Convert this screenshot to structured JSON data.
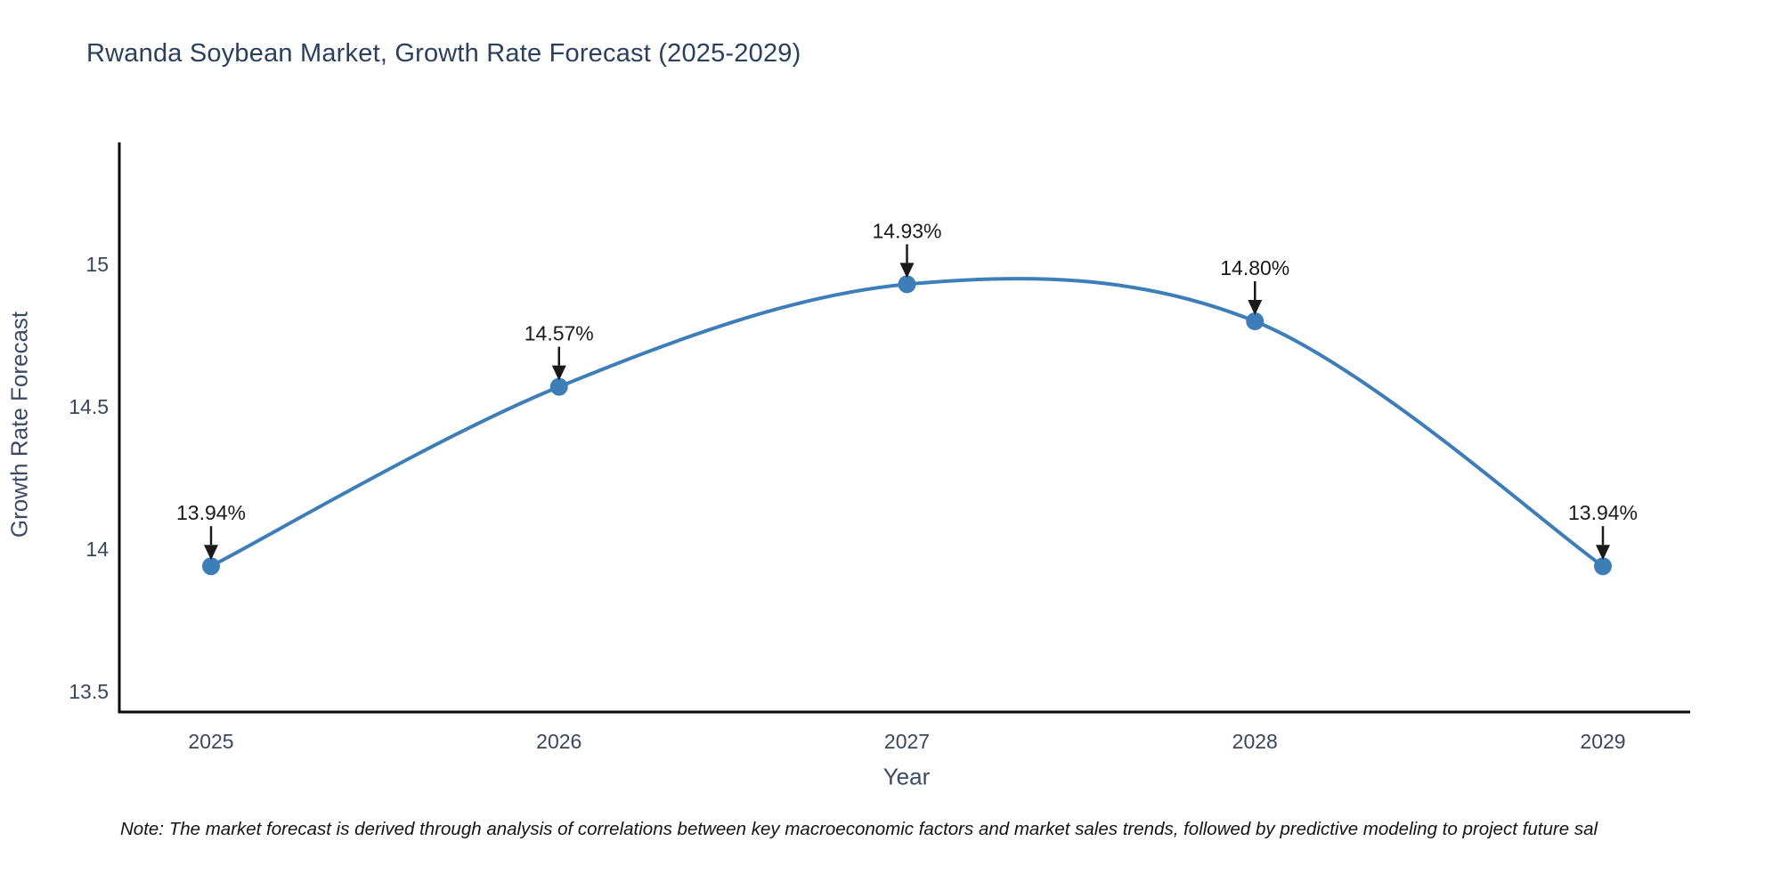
{
  "title": "Rwanda Soybean Market, Growth Rate Forecast (2025-2029)",
  "note": "Note: The market forecast is derived through analysis of correlations between key macroeconomic factors and market sales trends, followed by predictive modeling to project future sal",
  "chart_data": {
    "type": "line",
    "title": "Rwanda Soybean Market, Growth Rate Forecast (2025-2029)",
    "xlabel": "Year",
    "ylabel": "Growth Rate Forecast",
    "x": [
      2025,
      2026,
      2027,
      2028,
      2029
    ],
    "xtick_labels": [
      "2025",
      "2026",
      "2027",
      "2028",
      "2029"
    ],
    "series": [
      {
        "name": "Growth Rate Forecast",
        "values": [
          13.94,
          14.57,
          14.93,
          14.8,
          13.94
        ]
      }
    ],
    "point_labels": [
      "13.94%",
      "14.57%",
      "14.93%",
      "14.80%",
      "13.94%"
    ],
    "yticks": [
      13.5,
      14,
      14.5,
      15
    ],
    "ytick_labels": [
      "13.5",
      "14",
      "14.5",
      "15"
    ],
    "ylim": [
      13.43,
      15.43
    ],
    "grid": false,
    "legend": "none",
    "smooth": true,
    "colors": {
      "line": "#3d7eb8",
      "marker": "#3d7eb8",
      "axis": "#0a0a0a",
      "tick_text": "#3a4660",
      "annotation": "#1a1a1a",
      "title_text": "#2b3f5e",
      "background": "#ffffff"
    }
  }
}
